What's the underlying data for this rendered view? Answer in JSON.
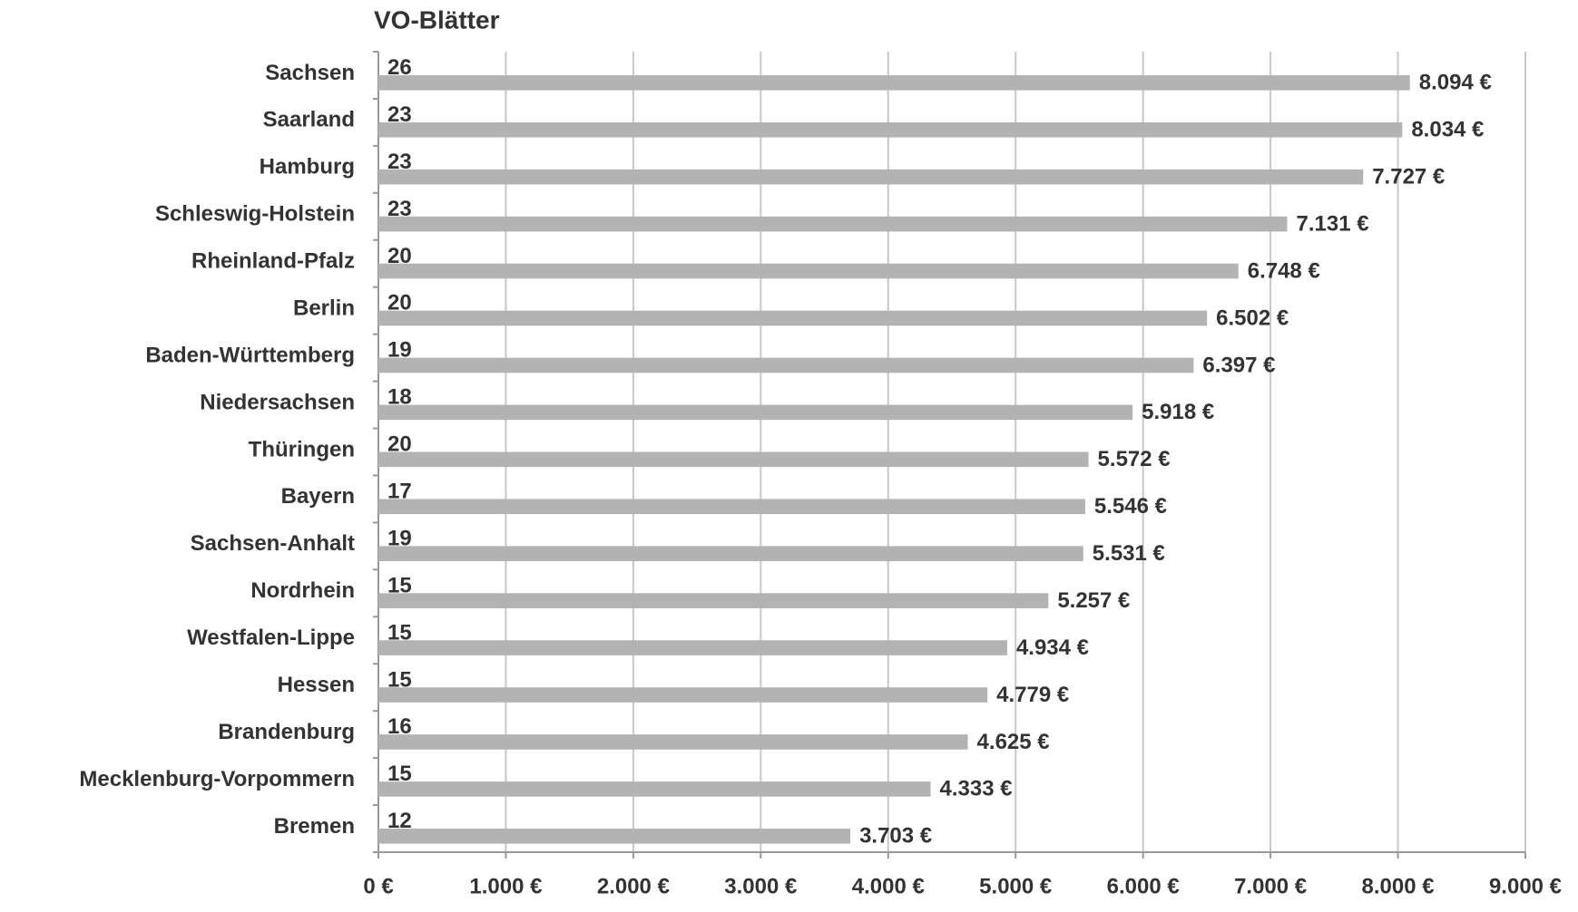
{
  "chart_data": {
    "type": "hbar",
    "title": "VO-Blätter",
    "categories": [
      "Sachsen",
      "Saarland",
      "Hamburg",
      "Schleswig-Holstein",
      "Rheinland-Pfalz",
      "Berlin",
      "Baden-Württemberg",
      "Niedersachsen",
      "Thüringen",
      "Bayern",
      "Sachsen-Anhalt",
      "Nordrhein",
      "Westfalen-Lippe",
      "Hessen",
      "Brandenburg",
      "Mecklenburg-Vorpommern",
      "Bremen"
    ],
    "values": [
      8094,
      8034,
      7727,
      7131,
      6748,
      6502,
      6397,
      5918,
      5572,
      5546,
      5531,
      5257,
      4934,
      4779,
      4625,
      4333,
      3703
    ],
    "value_labels": [
      "8.094 €",
      "8.034 €",
      "7.727 €",
      "7.131 €",
      "6.748 €",
      "6.502 €",
      "6.397 €",
      "5.918 €",
      "5.572 €",
      "5.546 €",
      "5.531 €",
      "5.257 €",
      "4.934 €",
      "4.779 €",
      "4.625 €",
      "4.333 €",
      "3.703 €"
    ],
    "bar_counts": [
      26,
      23,
      23,
      23,
      20,
      20,
      19,
      18,
      20,
      17,
      19,
      15,
      15,
      15,
      16,
      15,
      12
    ],
    "color": "#b3b3b3",
    "xlim": [
      0,
      9000
    ],
    "xticks": [
      {
        "value": 0,
        "label": "0 €"
      },
      {
        "value": 1000,
        "label": "1.000 €"
      },
      {
        "value": 2000,
        "label": "2.000 €"
      },
      {
        "value": 3000,
        "label": "3.000 €"
      },
      {
        "value": 4000,
        "label": "4.000 €"
      },
      {
        "value": 5000,
        "label": "5.000 €"
      },
      {
        "value": 6000,
        "label": "6.000 €"
      },
      {
        "value": 7000,
        "label": "7.000 €"
      },
      {
        "value": 8000,
        "label": "8.000 €"
      },
      {
        "value": 9000,
        "label": "9.000 €"
      }
    ],
    "grid": true
  }
}
